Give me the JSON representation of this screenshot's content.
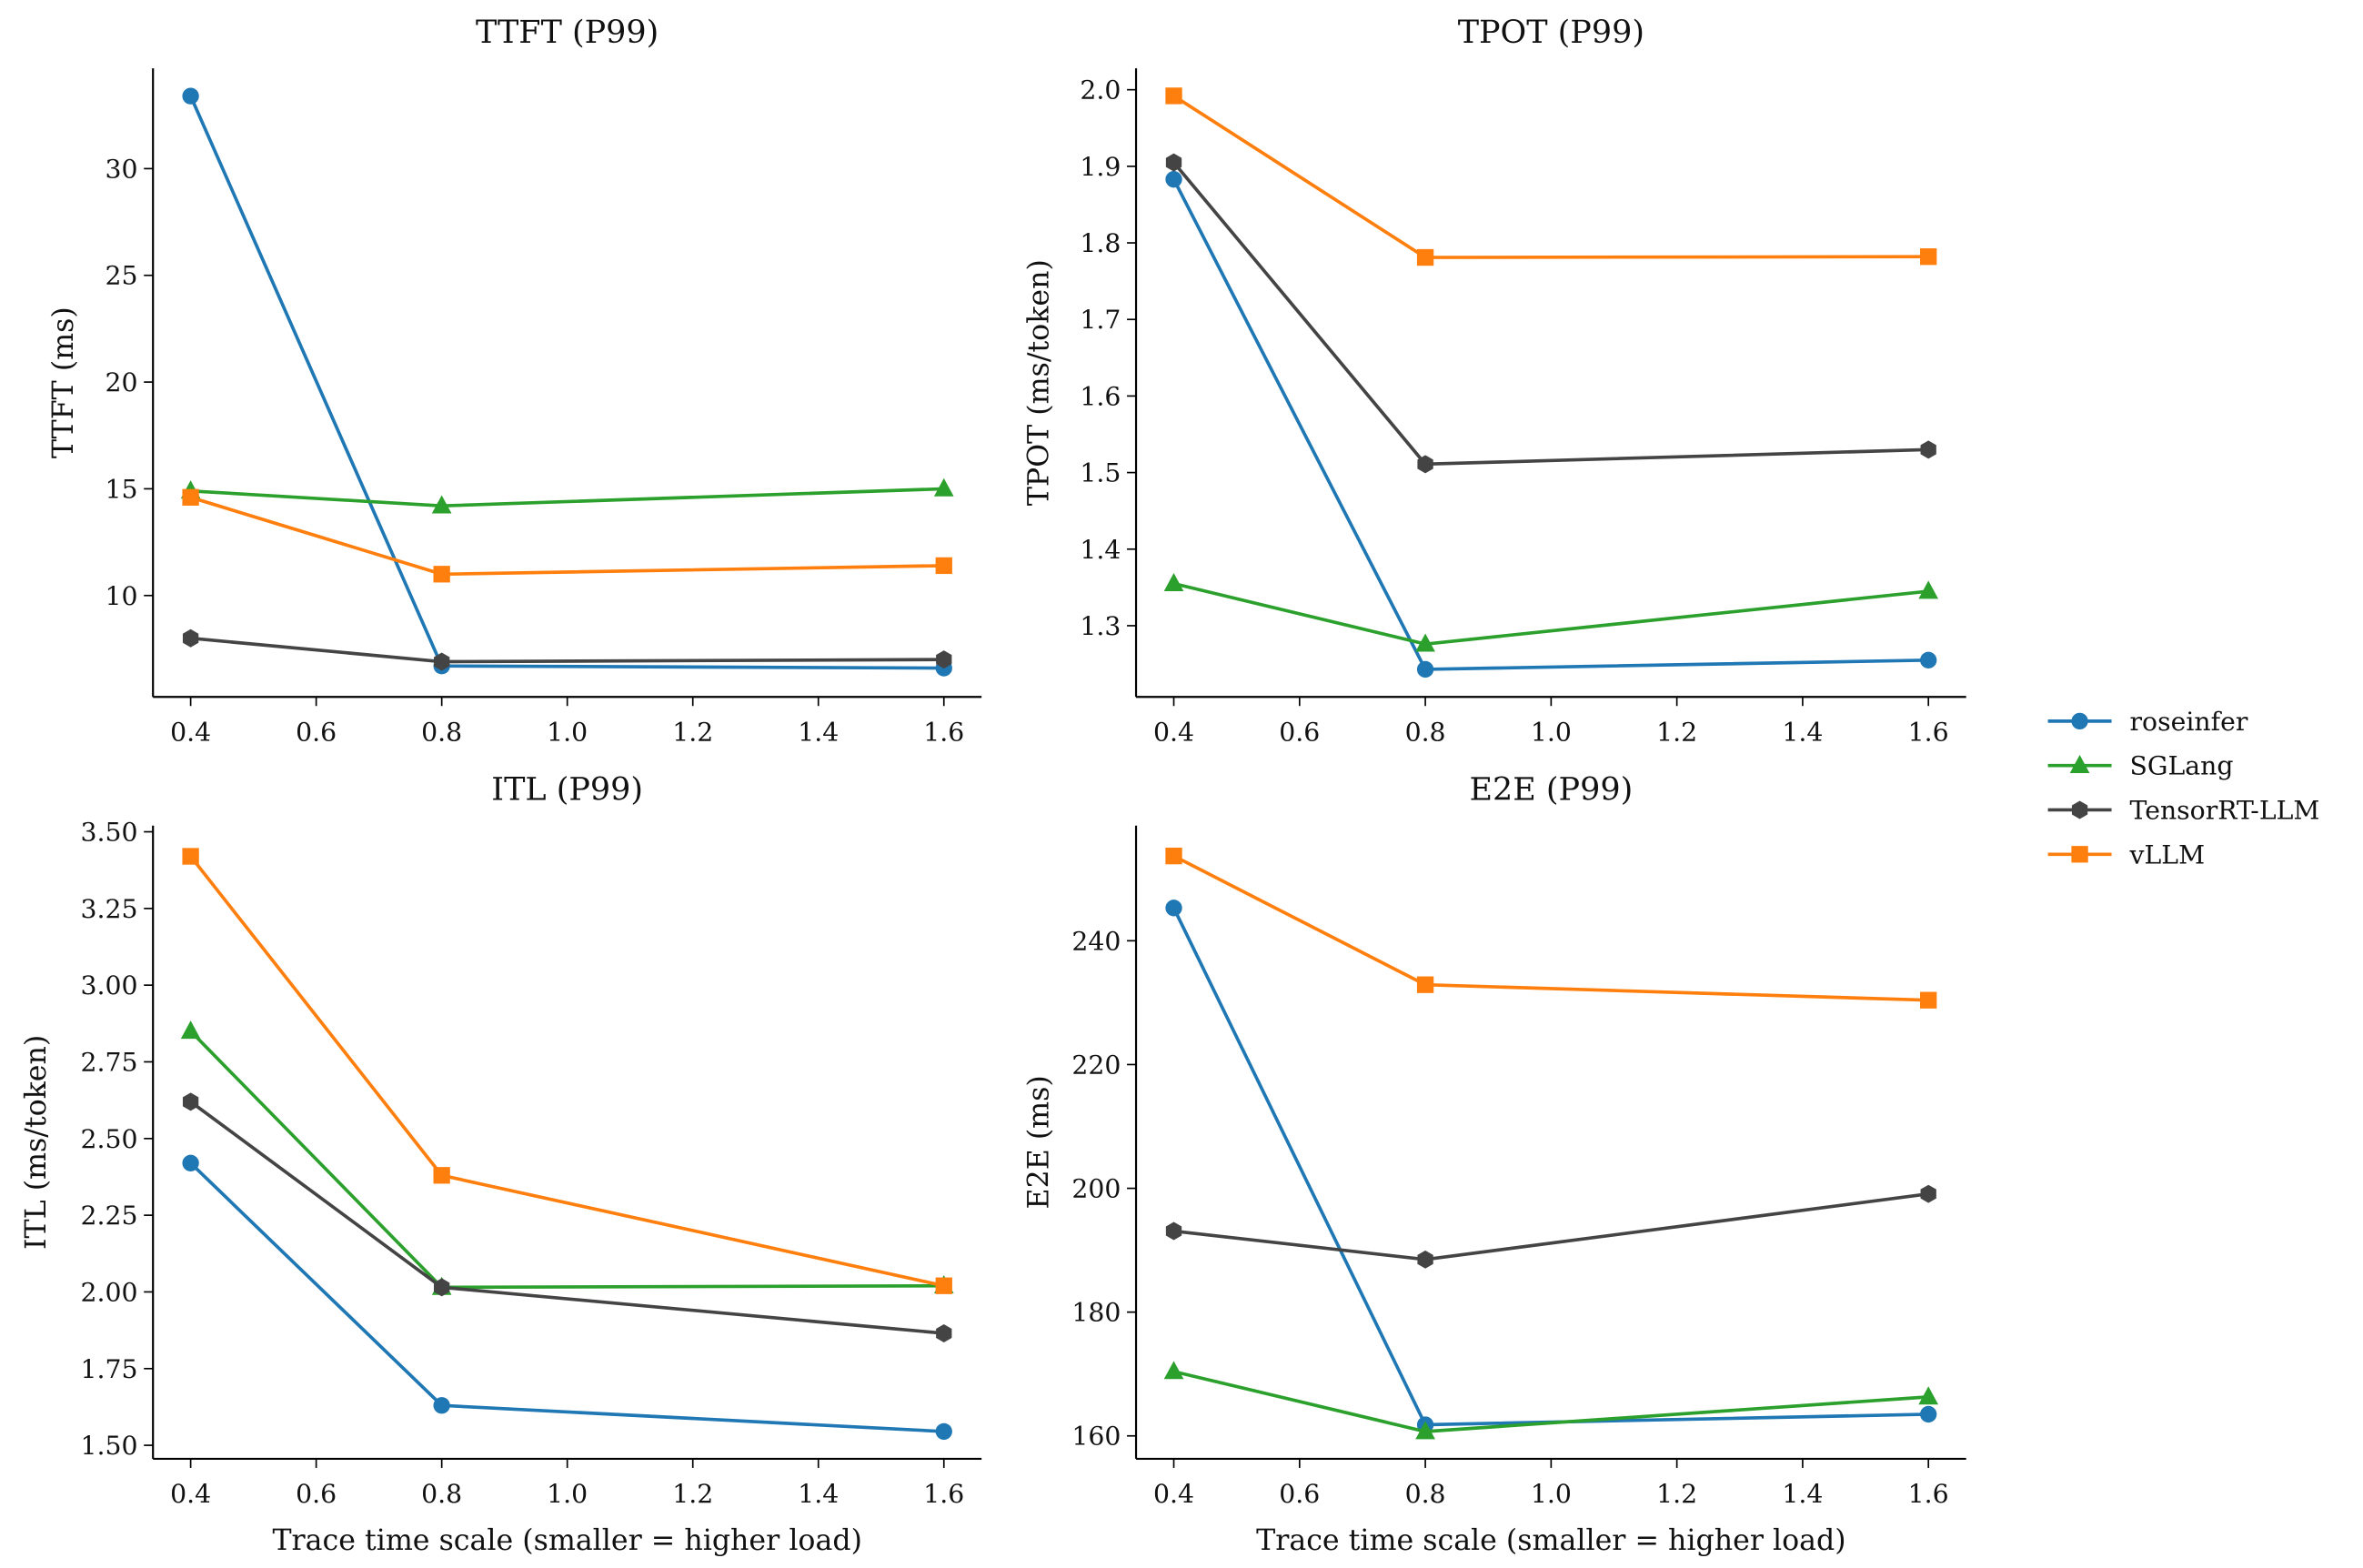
{
  "chart_data": [
    {
      "type": "line",
      "title": "TTFT (P99)",
      "ylabel": "TTFT (ms)",
      "x": [
        0.4,
        0.8,
        1.6
      ],
      "xlim": [
        0.34,
        1.66
      ],
      "xticks": [
        0.4,
        0.6,
        0.8,
        {
          "value": 1,
          "label": "1.0"
        },
        1.2,
        1.4,
        1.6
      ],
      "ylim": [
        5.25,
        34.7
      ],
      "yticks": [
        10,
        15,
        20,
        25,
        30
      ],
      "series": [
        {
          "name": "roseinfer",
          "color": "#1f77b4",
          "marker": "circle",
          "values": [
            33.4,
            6.7,
            6.6
          ]
        },
        {
          "name": "SGLang",
          "color": "#2ca02c",
          "marker": "triangle",
          "values": [
            14.9,
            14.2,
            15.0
          ]
        },
        {
          "name": "TensorRT-LLM",
          "color": "#444444",
          "marker": "hexagon",
          "values": [
            8.0,
            6.9,
            7.0
          ]
        },
        {
          "name": "vLLM",
          "color": "#ff7f0e",
          "marker": "square",
          "values": [
            14.6,
            11.0,
            11.4
          ]
        }
      ]
    },
    {
      "type": "line",
      "title": "TPOT (P99)",
      "ylabel": "TPOT (ms/token)",
      "x": [
        0.4,
        0.8,
        1.6
      ],
      "xlim": [
        0.34,
        1.66
      ],
      "xticks": [
        0.4,
        0.6,
        0.8,
        {
          "value": 1,
          "label": "1.0"
        },
        1.2,
        1.4,
        1.6
      ],
      "ylim": [
        1.207,
        2.028
      ],
      "yticks": [
        1.3,
        1.4,
        1.5,
        1.6,
        1.7,
        1.8,
        1.9,
        {
          "value": 2,
          "label": "2.0"
        }
      ],
      "series": [
        {
          "name": "roseinfer",
          "color": "#1f77b4",
          "marker": "circle",
          "values": [
            1.883,
            1.243,
            1.255
          ]
        },
        {
          "name": "SGLang",
          "color": "#2ca02c",
          "marker": "triangle",
          "values": [
            1.355,
            1.276,
            1.345
          ]
        },
        {
          "name": "TensorRT-LLM",
          "color": "#444444",
          "marker": "hexagon",
          "values": [
            1.905,
            1.511,
            1.53
          ]
        },
        {
          "name": "vLLM",
          "color": "#ff7f0e",
          "marker": "square",
          "values": [
            1.992,
            1.781,
            1.782
          ]
        }
      ]
    },
    {
      "type": "line",
      "title": "ITL (P99)",
      "ylabel": "ITL (ms/token)",
      "xlabel": "Trace time scale (smaller = higher load)",
      "x": [
        0.4,
        0.8,
        1.6
      ],
      "xlim": [
        0.34,
        1.66
      ],
      "xticks": [
        0.4,
        0.6,
        0.8,
        {
          "value": 1,
          "label": "1.0"
        },
        1.2,
        1.4,
        1.6
      ],
      "ylim": [
        1.456,
        3.52
      ],
      "yticks": [
        {
          "value": 1.5,
          "label": "1.50"
        },
        1.75,
        {
          "value": 2,
          "label": "2.00"
        },
        2.25,
        {
          "value": 2.5,
          "label": "2.50"
        },
        2.75,
        {
          "value": 3,
          "label": "3.00"
        },
        3.25,
        {
          "value": 3.5,
          "label": "3.50"
        }
      ],
      "series": [
        {
          "name": "roseinfer",
          "color": "#1f77b4",
          "marker": "circle",
          "values": [
            2.42,
            1.63,
            1.545
          ]
        },
        {
          "name": "SGLang",
          "color": "#2ca02c",
          "marker": "triangle",
          "values": [
            2.85,
            2.015,
            2.02
          ]
        },
        {
          "name": "TensorRT-LLM",
          "color": "#444444",
          "marker": "hexagon",
          "values": [
            2.62,
            2.015,
            1.865
          ]
        },
        {
          "name": "vLLM",
          "color": "#ff7f0e",
          "marker": "square",
          "values": [
            3.42,
            2.38,
            2.02
          ]
        }
      ]
    },
    {
      "type": "line",
      "title": "E2E (P99)",
      "ylabel": "E2E (ms)",
      "xlabel": "Trace time scale (smaller = higher load)",
      "x": [
        0.4,
        0.8,
        1.6
      ],
      "xlim": [
        0.34,
        1.66
      ],
      "xticks": [
        0.4,
        0.6,
        0.8,
        {
          "value": 1,
          "label": "1.0"
        },
        1.2,
        1.4,
        1.6
      ],
      "ylim": [
        156.3,
        258.6
      ],
      "yticks": [
        160,
        180,
        200,
        220,
        240
      ],
      "series": [
        {
          "name": "roseinfer",
          "color": "#1f77b4",
          "marker": "circle",
          "values": [
            245.3,
            161.8,
            163.5
          ]
        },
        {
          "name": "SGLang",
          "color": "#2ca02c",
          "marker": "triangle",
          "values": [
            170.4,
            160.7,
            166.3
          ]
        },
        {
          "name": "TensorRT-LLM",
          "color": "#444444",
          "marker": "hexagon",
          "values": [
            193.1,
            188.5,
            199.1
          ]
        },
        {
          "name": "vLLM",
          "color": "#ff7f0e",
          "marker": "square",
          "values": [
            253.7,
            232.9,
            230.4
          ]
        }
      ]
    }
  ]
}
